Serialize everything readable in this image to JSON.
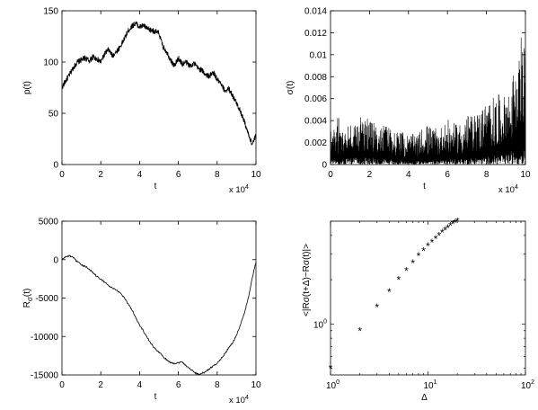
{
  "chart_data": [
    {
      "type": "line",
      "panel": "top-left",
      "xlabel": "t",
      "ylabel": "p(t)",
      "x_multiplier_label": "x 10",
      "x_multiplier_exp": "4",
      "xlim": [
        0,
        100000
      ],
      "ylim": [
        0,
        150
      ],
      "xticks": [
        0,
        2,
        4,
        6,
        8,
        10
      ],
      "yticks": [
        0,
        50,
        100,
        150
      ],
      "series": [
        {
          "x": [
            0,
            2000,
            4000,
            6000,
            8000,
            10000,
            12000,
            14000,
            16000,
            18000,
            20000,
            22000,
            24000,
            26000,
            28000,
            30000,
            32000,
            34000,
            36000,
            38000,
            40000,
            42000,
            44000,
            46000,
            48000,
            50000,
            52000,
            54000,
            56000,
            58000,
            60000,
            62000,
            64000,
            66000,
            68000,
            70000,
            72000,
            74000,
            76000,
            78000,
            80000,
            82000,
            84000,
            86000,
            88000,
            90000,
            92000,
            94000,
            96000,
            98000,
            100000
          ],
          "y": [
            75,
            82,
            88,
            95,
            100,
            102,
            104,
            101,
            105,
            103,
            100,
            108,
            112,
            106,
            110,
            115,
            122,
            130,
            135,
            138,
            134,
            136,
            132,
            131,
            130,
            128,
            115,
            110,
            102,
            96,
            104,
            98,
            100,
            96,
            99,
            94,
            92,
            88,
            86,
            90,
            83,
            78,
            72,
            74,
            67,
            60,
            52,
            42,
            30,
            20,
            28
          ]
        }
      ]
    },
    {
      "type": "line",
      "panel": "top-right",
      "xlabel": "t",
      "ylabel": "σ(t)",
      "x_multiplier_label": "x 10",
      "x_multiplier_exp": "4",
      "xlim": [
        0,
        100000
      ],
      "ylim": [
        0,
        0.014
      ],
      "xticks": [
        0,
        2,
        4,
        6,
        8,
        10
      ],
      "yticks": [
        "0",
        "0.002",
        "0.004",
        "0.006",
        "0.008",
        "0.01",
        "0.012",
        "0.014"
      ],
      "ytick_values": [
        0,
        0.002,
        0.004,
        0.006,
        0.008,
        0.01,
        0.012,
        0.014
      ],
      "series": [
        {
          "x": [
            0,
            5000,
            10000,
            15000,
            20000,
            25000,
            30000,
            35000,
            40000,
            45000,
            50000,
            55000,
            60000,
            65000,
            70000,
            75000,
            80000,
            85000,
            90000,
            92000,
            94000,
            96000,
            98000,
            100000
          ],
          "y": [
            0.0022,
            0.0024,
            0.0026,
            0.0028,
            0.003,
            0.0024,
            0.0023,
            0.0018,
            0.0015,
            0.0016,
            0.0018,
            0.002,
            0.0022,
            0.0024,
            0.0026,
            0.003,
            0.0034,
            0.0038,
            0.0045,
            0.005,
            0.0058,
            0.0065,
            0.0085,
            0.0095
          ],
          "upper_envelope_peaks": [
            [
              5000,
              0.0042
            ],
            [
              10000,
              0.0038
            ],
            [
              15000,
              0.0044
            ],
            [
              20000,
              0.0041
            ],
            [
              25000,
              0.0035
            ],
            [
              30000,
              0.0036
            ],
            [
              35000,
              0.0031
            ],
            [
              38000,
              0.0029
            ],
            [
              45000,
              0.0027
            ],
            [
              48000,
              0.0038
            ],
            [
              55000,
              0.0032
            ],
            [
              60000,
              0.0041
            ],
            [
              65000,
              0.0036
            ],
            [
              70000,
              0.0046
            ],
            [
              72000,
              0.0044
            ],
            [
              76000,
              0.005
            ],
            [
              80000,
              0.0058
            ],
            [
              84000,
              0.0062
            ],
            [
              86000,
              0.0066
            ],
            [
              88000,
              0.0052
            ],
            [
              90000,
              0.0072
            ],
            [
              92000,
              0.0068
            ],
            [
              94000,
              0.0085
            ],
            [
              96000,
              0.0074
            ],
            [
              98000,
              0.0126
            ],
            [
              99000,
              0.0115
            ],
            [
              100000,
              0.01
            ]
          ]
        }
      ]
    },
    {
      "type": "line",
      "panel": "bottom-left",
      "xlabel": "t",
      "ylabel": "Rσ(t)",
      "ylabel_main": "R",
      "ylabel_sub": "σ",
      "ylabel_tail": "(t)",
      "x_multiplier_label": "x 10",
      "x_multiplier_exp": "4",
      "xlim": [
        0,
        100000
      ],
      "ylim": [
        -15000,
        5000
      ],
      "xticks": [
        0,
        2,
        4,
        6,
        8,
        10
      ],
      "yticks": [
        -15000,
        -10000,
        -5000,
        0,
        5000
      ],
      "series": [
        {
          "x": [
            0,
            2000,
            4000,
            6000,
            8000,
            10000,
            12000,
            14000,
            16000,
            18000,
            20000,
            22000,
            24000,
            26000,
            28000,
            30000,
            32000,
            34000,
            36000,
            38000,
            40000,
            42000,
            44000,
            46000,
            48000,
            50000,
            52000,
            54000,
            56000,
            58000,
            60000,
            62000,
            64000,
            66000,
            68000,
            70000,
            72000,
            74000,
            76000,
            78000,
            80000,
            82000,
            84000,
            86000,
            88000,
            90000,
            92000,
            94000,
            96000,
            98000,
            100000
          ],
          "y": [
            0,
            400,
            500,
            200,
            -300,
            -700,
            -900,
            -1200,
            -1700,
            -2200,
            -2500,
            -2900,
            -3400,
            -3700,
            -4000,
            -4300,
            -4900,
            -5700,
            -6500,
            -7500,
            -8500,
            -9300,
            -10200,
            -11000,
            -11600,
            -12000,
            -12600,
            -13000,
            -13400,
            -13500,
            -13400,
            -13300,
            -13800,
            -14200,
            -14600,
            -14900,
            -14800,
            -14600,
            -14200,
            -13800,
            -13500,
            -12900,
            -12200,
            -11500,
            -10800,
            -9800,
            -8500,
            -7000,
            -5000,
            -2500,
            -300
          ]
        }
      ]
    },
    {
      "type": "scatter",
      "panel": "bottom-right",
      "marker": "*",
      "xlabel": "Δ",
      "ylabel": "<|Rσ(t+Δ)−Rσ(t)|>",
      "x_scale": "log",
      "y_scale": "log",
      "xlim": [
        1,
        100
      ],
      "ylim": [
        0.45,
        5
      ],
      "xtick_base": "10",
      "xtick_exps": [
        "0",
        "1",
        "2"
      ],
      "xtick_values": [
        1,
        10,
        100
      ],
      "ytick_base": "10",
      "ytick_exps": [
        "0"
      ],
      "ytick_values": [
        1
      ],
      "series": [
        {
          "x": [
            1,
            2,
            3,
            4,
            5,
            6,
            7,
            8,
            9,
            10,
            11,
            12,
            13,
            14,
            15,
            16,
            17,
            18,
            19,
            20
          ],
          "y": [
            0.5,
            0.9,
            1.3,
            1.65,
            2.0,
            2.3,
            2.6,
            2.9,
            3.15,
            3.4,
            3.6,
            3.8,
            4.0,
            4.2,
            4.35,
            4.5,
            4.65,
            4.8,
            4.9,
            5.0
          ]
        }
      ]
    }
  ]
}
